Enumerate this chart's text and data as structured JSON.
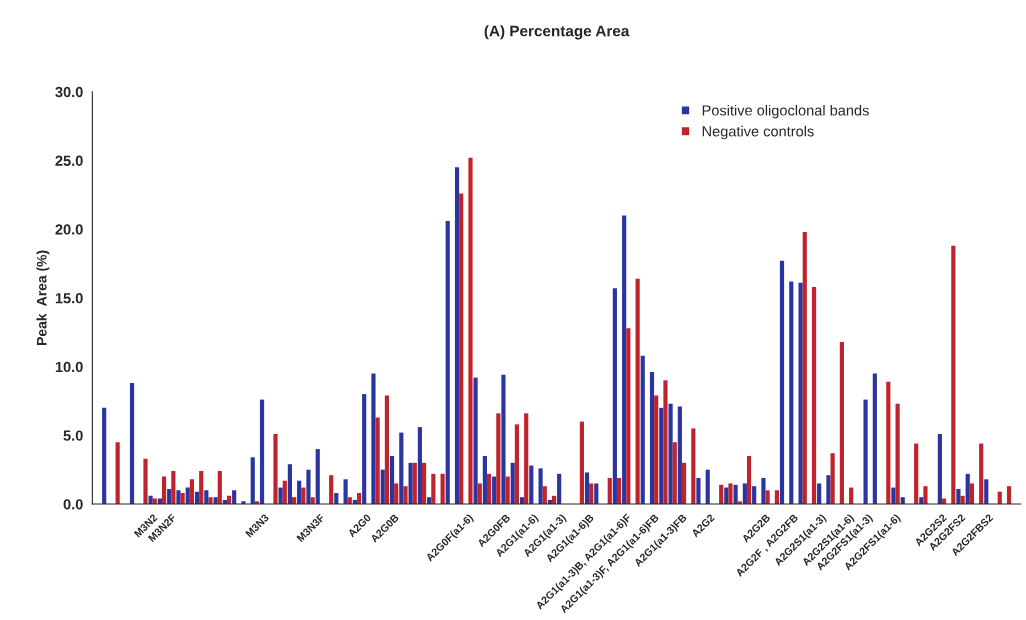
{
  "chart_data": {
    "type": "bar",
    "title": "(A) Percentage Area",
    "ylabel": "Peak  Area (%)",
    "categories": [
      null,
      null,
      null,
      null,
      null,
      null,
      "M3N2",
      null,
      "M3N2F",
      null,
      null,
      null,
      null,
      null,
      null,
      null,
      null,
      null,
      "M3N3",
      null,
      null,
      null,
      null,
      null,
      "M3N3F",
      null,
      null,
      null,
      null,
      "A2G0",
      null,
      null,
      "A2G0B",
      null,
      null,
      null,
      null,
      null,
      null,
      null,
      "A2G0F(a1-6)",
      null,
      null,
      null,
      "A2G0FB",
      null,
      null,
      "A2G1(a1-6)",
      null,
      null,
      "A2G1(a1-3)",
      null,
      null,
      "A2G1(a1-6)B",
      null,
      null,
      null,
      "A2G1(a1-3)B, A2G1(a1-6)F",
      null,
      null,
      "A2G1(a1-3)F, A2G1(a1-6)FB",
      null,
      null,
      "A2G1(a1-3)FB",
      null,
      null,
      "A2G2",
      null,
      null,
      null,
      null,
      null,
      "A2G2B",
      null,
      null,
      "A2G2F , A2G2FB",
      null,
      null,
      "A2G2S1(a1-3)",
      null,
      null,
      "A2G2S1(a1-6)",
      null,
      "A2G2FS1(a1-3)",
      null,
      null,
      "A2G2FS1(a1-6)",
      null,
      null,
      null,
      null,
      "A2G2S2",
      null,
      "A2G2FS2",
      null,
      null,
      "A2G2FBS2",
      null,
      null,
      null
    ],
    "series": [
      {
        "name": "Positive oligoclonal bands",
        "color": "#2b35a0",
        "values": [
          null,
          7.0,
          null,
          null,
          8.8,
          null,
          0.6,
          0.4,
          1.1,
          1.0,
          1.2,
          0.9,
          1.0,
          0.5,
          0.3,
          1.0,
          0.2,
          3.4,
          7.6,
          null,
          1.2,
          2.9,
          1.7,
          2.5,
          4.0,
          null,
          0.8,
          1.8,
          0.3,
          8.0,
          9.5,
          2.5,
          3.5,
          5.2,
          3.0,
          5.6,
          0.5,
          null,
          20.6,
          24.5,
          null,
          9.2,
          3.5,
          2.0,
          9.4,
          3.0,
          0.5,
          2.8,
          2.6,
          0.3,
          2.2,
          null,
          null,
          2.3,
          1.5,
          null,
          15.7,
          21.0,
          null,
          10.8,
          9.6,
          7.0,
          7.3,
          7.1,
          null,
          1.9,
          2.5,
          null,
          1.2,
          1.4,
          1.5,
          1.3,
          1.9,
          null,
          17.7,
          16.2,
          16.1,
          null,
          1.5,
          2.1,
          null,
          null,
          null,
          7.6,
          9.5,
          null,
          1.2,
          0.5,
          null,
          0.5,
          null,
          5.1,
          null,
          1.1,
          2.2,
          null,
          1.8,
          null,
          null,
          null
        ]
      },
      {
        "name": "Negative controls",
        "color": "#c0232c",
        "values": [
          null,
          null,
          4.5,
          null,
          null,
          3.3,
          0.4,
          2.0,
          2.4,
          0.8,
          1.8,
          2.4,
          0.5,
          2.4,
          0.6,
          null,
          null,
          0.2,
          null,
          5.1,
          1.7,
          0.5,
          1.2,
          0.5,
          null,
          2.1,
          null,
          0.5,
          0.8,
          null,
          6.3,
          7.9,
          1.5,
          1.3,
          3.0,
          3.0,
          2.2,
          2.2,
          null,
          22.6,
          25.2,
          1.5,
          2.2,
          6.6,
          2.0,
          5.8,
          6.6,
          null,
          1.3,
          0.6,
          null,
          null,
          6.0,
          1.5,
          null,
          1.9,
          1.9,
          12.8,
          16.4,
          null,
          7.9,
          9.0,
          4.5,
          3.0,
          5.5,
          null,
          null,
          1.4,
          1.5,
          0.2,
          3.5,
          null,
          1.0,
          1.0,
          null,
          null,
          19.8,
          15.8,
          null,
          3.7,
          11.8,
          1.2,
          null,
          null,
          null,
          8.9,
          7.3,
          null,
          4.4,
          1.3,
          null,
          0.4,
          18.8,
          0.6,
          1.5,
          4.4,
          null,
          0.9,
          1.3,
          null
        ]
      }
    ],
    "ylim": [
      0,
      30
    ],
    "yticks": [
      {
        "value": 0,
        "label": "0.0"
      },
      {
        "value": 5,
        "label": "5.0"
      },
      {
        "value": 10,
        "label": "10.0"
      },
      {
        "value": 15,
        "label": "15.0"
      },
      {
        "value": 20,
        "label": "20.0"
      },
      {
        "value": 25,
        "label": "25.0"
      },
      {
        "value": 30,
        "label": "30.0"
      }
    ],
    "legend": "top right",
    "grid": false
  }
}
